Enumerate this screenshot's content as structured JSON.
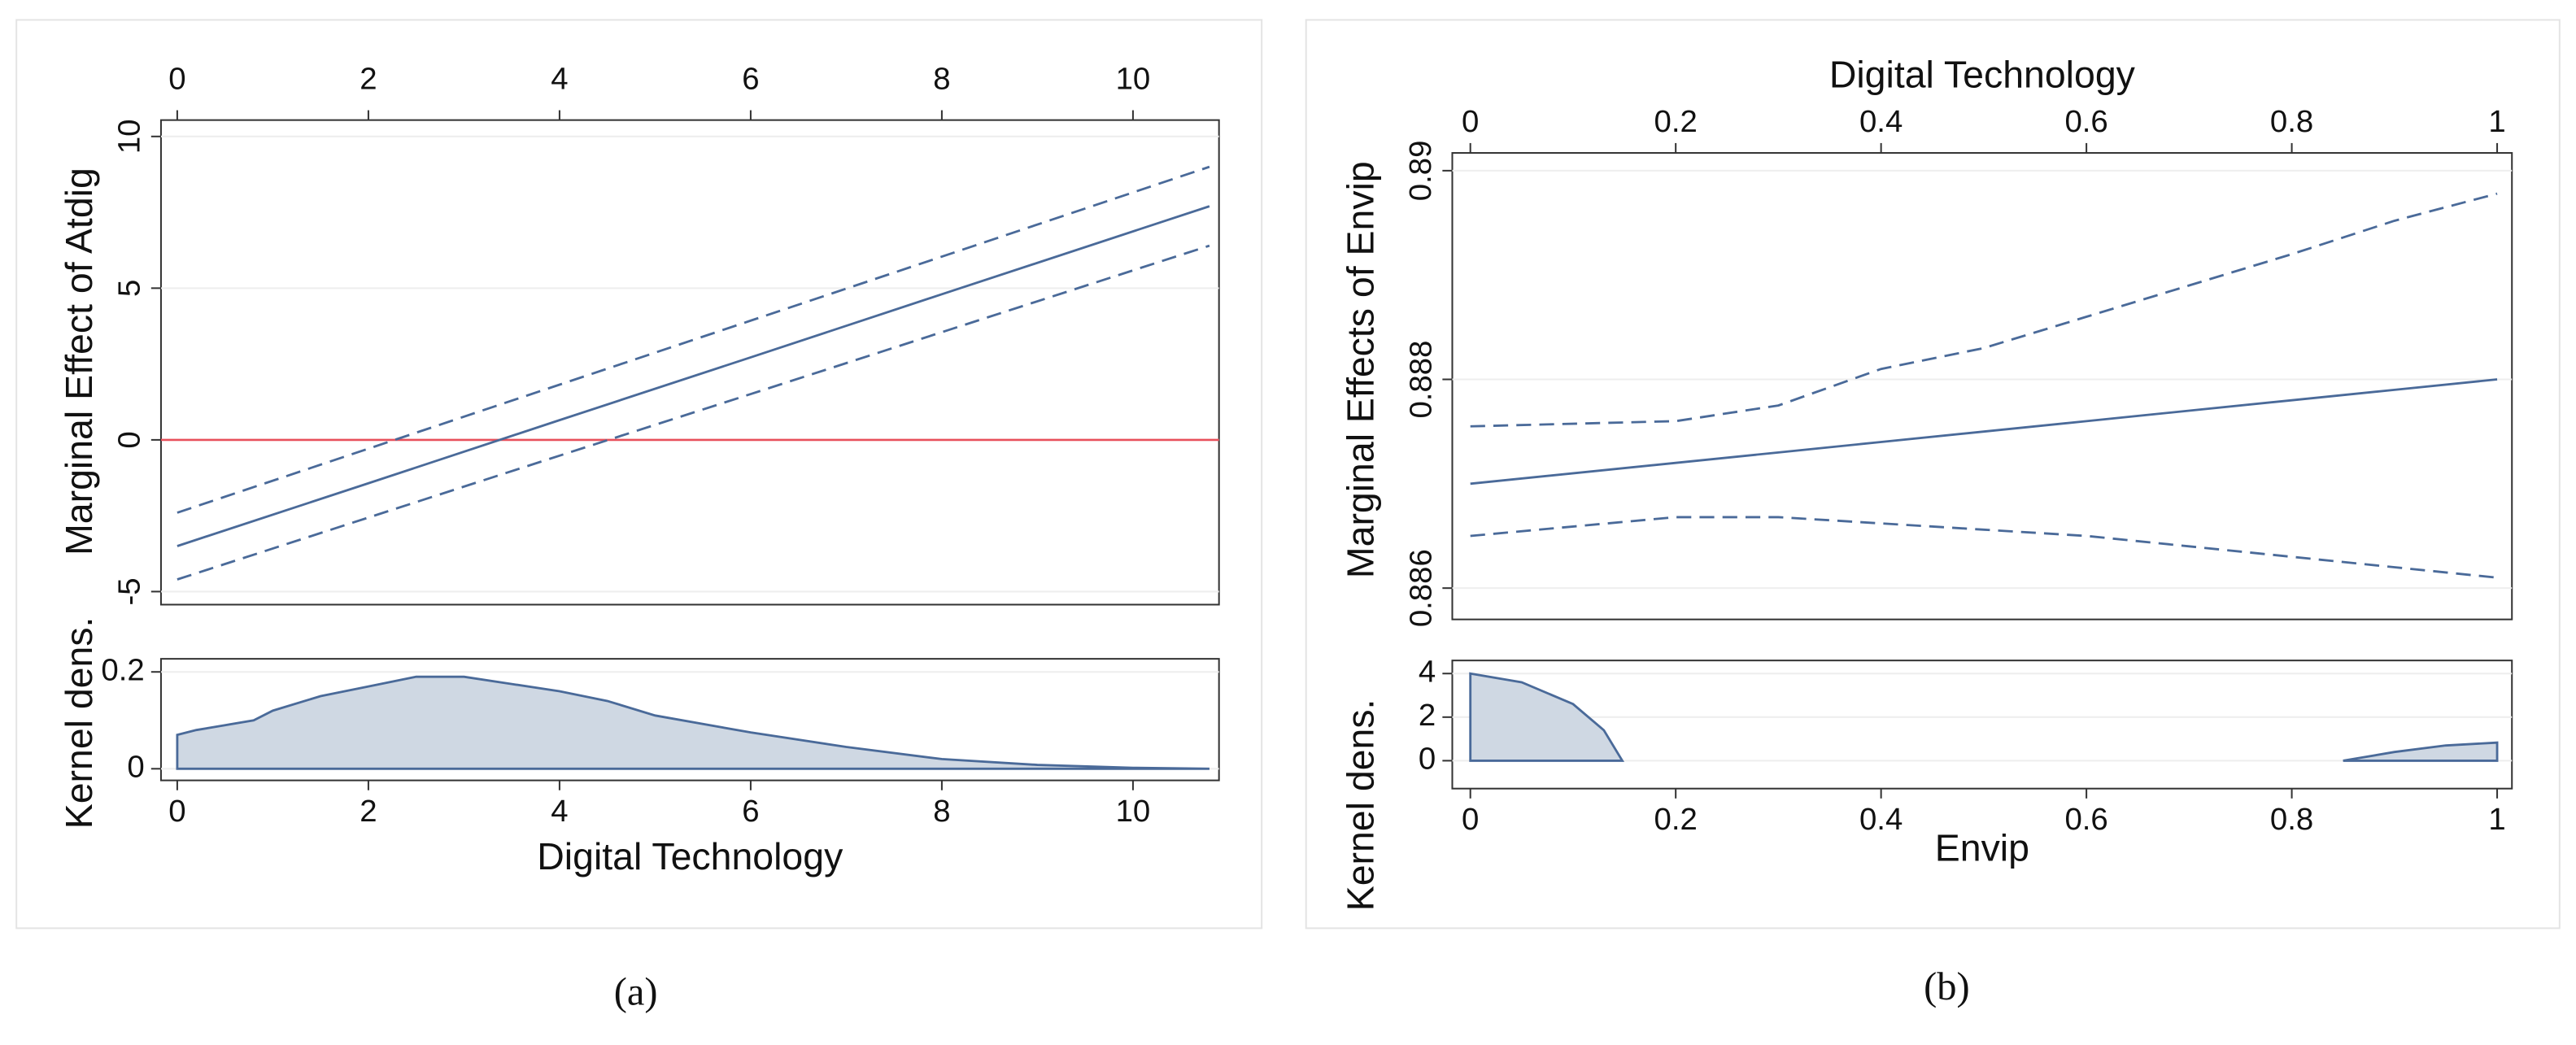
{
  "captions": [
    "(a)",
    "(b)"
  ],
  "chart_data": [
    {
      "type": "line",
      "ylabel": "Marginal Effect of Atdig",
      "xaxis_position": "top",
      "xlim": [
        -0.17,
        10.9
      ],
      "ylim": [
        -5.43,
        10.54
      ],
      "xticks": [
        0,
        2,
        4,
        6,
        8,
        10
      ],
      "yticks": [
        -5,
        0,
        5,
        10
      ],
      "ytick_rotated": true,
      "grid": true,
      "hline": {
        "value": 0,
        "color": "#e8505b"
      },
      "x": [
        0,
        2,
        4,
        6,
        8,
        10.8
      ],
      "series": [
        {
          "color": "#4a6a99",
          "dashed": true,
          "values": [
            -2.4,
            -0.29,
            1.82,
            3.93,
            6.04,
            9.0
          ]
        },
        {
          "color": "#4a6a99",
          "dashed": false,
          "values": [
            -3.5,
            -1.43,
            0.65,
            2.72,
            4.8,
            7.7
          ]
        },
        {
          "color": "#4a6a99",
          "dashed": true,
          "values": [
            -4.6,
            -2.56,
            -0.52,
            1.51,
            3.55,
            6.4
          ]
        }
      ]
    },
    {
      "type": "area",
      "ylabel": "Kernel dens.",
      "xlabel": "Digital Technology",
      "xaxis_position": "bottom",
      "xlim": [
        -0.17,
        10.9
      ],
      "ylim": [
        -0.024,
        0.227
      ],
      "xticks": [
        0,
        2,
        4,
        6,
        8,
        10
      ],
      "yticks": [
        0,
        0.2
      ],
      "ytick_rotated": false,
      "grid": true,
      "color": "#4a6a99",
      "fill": "#cfd8e3",
      "x": [
        0,
        0.2,
        0.5,
        0.8,
        1,
        1.5,
        2,
        2.5,
        3,
        3.5,
        4,
        4.5,
        5,
        6,
        7,
        8,
        9,
        10,
        10.8
      ],
      "values": [
        0.07,
        0.08,
        0.09,
        0.1,
        0.12,
        0.15,
        0.17,
        0.19,
        0.19,
        0.175,
        0.16,
        0.14,
        0.11,
        0.075,
        0.045,
        0.02,
        0.008,
        0.002,
        0
      ]
    },
    {
      "type": "line",
      "xlabel": "Digital Technology",
      "ylabel": "Marginal Effects of Envip",
      "xaxis_position": "top",
      "xlim": [
        -0.0176,
        1.0144
      ],
      "ylim": [
        0.8857,
        0.89017
      ],
      "xticks": [
        0,
        0.2,
        0.4,
        0.6,
        0.8,
        1
      ],
      "yticks": [
        0.886,
        0.888,
        0.89
      ],
      "ytick_rotated": true,
      "grid": true,
      "x": [
        0,
        0.2,
        0.3,
        0.4,
        0.5,
        0.6,
        0.7,
        0.8,
        0.9,
        1
      ],
      "series": [
        {
          "color": "#4a6a99",
          "dashed": true,
          "values": [
            0.88755,
            0.8876,
            0.88775,
            0.8881,
            0.8883,
            0.8886,
            0.8889,
            0.8892,
            0.88952,
            0.88978
          ]
        },
        {
          "color": "#4a6a99",
          "dashed": false,
          "values": [
            0.887,
            0.8872,
            0.8873,
            0.8874,
            0.8875,
            0.8876,
            0.8877,
            0.8878,
            0.8879,
            0.888
          ]
        },
        {
          "color": "#4a6a99",
          "dashed": true,
          "values": [
            0.8865,
            0.88668,
            0.88668,
            0.88662,
            0.88656,
            0.8865,
            0.8864,
            0.8863,
            0.8862,
            0.8861
          ]
        }
      ]
    },
    {
      "type": "area",
      "ylabel": "Kernel dens.",
      "xlabel": "Envip",
      "xaxis_position": "bottom",
      "xlim": [
        -0.0176,
        1.0144
      ],
      "ylim": [
        -1.28,
        4.6
      ],
      "xticks": [
        0,
        0.2,
        0.4,
        0.6,
        0.8,
        1
      ],
      "yticks": [
        0,
        2,
        4
      ],
      "ytick_rotated": false,
      "grid": true,
      "color": "#4a6a99",
      "fill": "#cfd8e3",
      "x": [
        0,
        0.05,
        0.1,
        0.13,
        0.148,
        null,
        0.85,
        0.9,
        0.95,
        1
      ],
      "values": [
        4,
        3.6,
        2.6,
        1.4,
        0,
        null,
        0,
        0.4,
        0.7,
        0.83
      ]
    }
  ]
}
